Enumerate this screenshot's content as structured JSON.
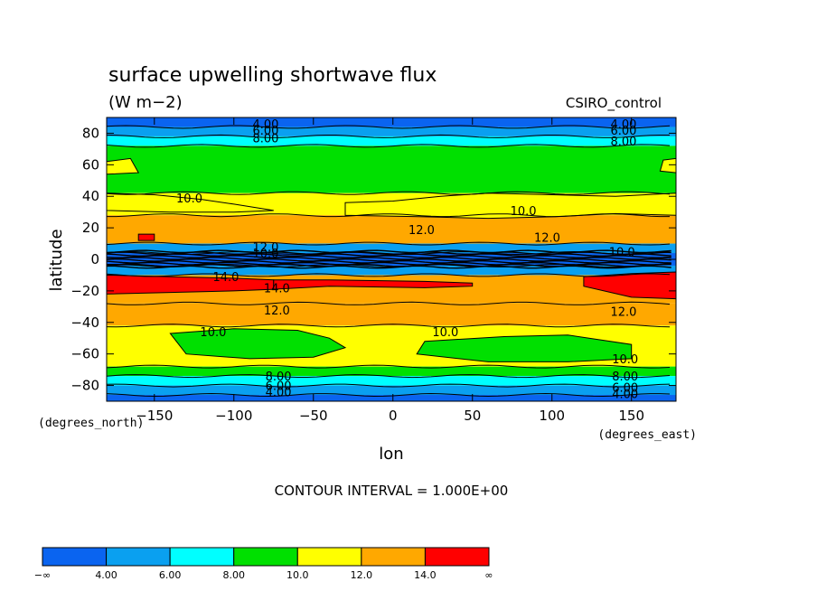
{
  "chart_data": {
    "type": "heatmap",
    "title": "surface upwelling shortwave flux",
    "units": "(W m−2)",
    "dataset": "CSIRO_control",
    "xlabel": "lon",
    "ylabel": "latitude",
    "x_unit_note": "(degrees_east)",
    "y_unit_note": "(degrees_north)",
    "xlim": [
      -180,
      178
    ],
    "ylim": [
      -90,
      90
    ],
    "x_ticks": [
      -150,
      -100,
      -50,
      0,
      50,
      100,
      150
    ],
    "y_ticks": [
      80,
      60,
      40,
      20,
      0,
      -20,
      -40,
      -60,
      -80
    ],
    "x_tick_labels": [
      "−150",
      "−100",
      "−50",
      "0",
      "50",
      "100",
      "150"
    ],
    "y_tick_labels": [
      "80",
      "60",
      "40",
      "20",
      "0",
      "−20",
      "−40",
      "−60",
      "−80"
    ],
    "contour_interval_text": "CONTOUR INTERVAL = 1.000E+00",
    "colorbar": {
      "levels": [
        "−∞",
        "4.00",
        "6.00",
        "8.00",
        "10.0",
        "12.0",
        "14.0",
        "∞"
      ],
      "colors": [
        "#0a64f0",
        "#0aa0f0",
        "#00ffff",
        "#00e000",
        "#ffff00",
        "#ffa800",
        "#ff0000"
      ]
    },
    "zonal_bands": [
      {
        "lat_from": 90,
        "lat_to": 84,
        "value": 3.5
      },
      {
        "lat_from": 84,
        "lat_to": 78,
        "value": 5.0
      },
      {
        "lat_from": 78,
        "lat_to": 72,
        "value": 7.0
      },
      {
        "lat_from": 72,
        "lat_to": 42,
        "value": 9.0
      },
      {
        "lat_from": 42,
        "lat_to": 28,
        "value": 11.0
      },
      {
        "lat_from": 28,
        "lat_to": 10,
        "value": 13.0
      },
      {
        "lat_from": 10,
        "lat_to": 4,
        "value": 5.0
      },
      {
        "lat_from": 4,
        "lat_to": -4,
        "value": 3.5
      },
      {
        "lat_from": -4,
        "lat_to": -10,
        "value": 5.0
      },
      {
        "lat_from": -10,
        "lat_to": -28,
        "value": 13.0
      },
      {
        "lat_from": -28,
        "lat_to": -42,
        "value": 13.0
      },
      {
        "lat_from": -42,
        "lat_to": -68,
        "value": 11.0
      },
      {
        "lat_from": -68,
        "lat_to": -74,
        "value": 9.0
      },
      {
        "lat_from": -74,
        "lat_to": -80,
        "value": 7.0
      },
      {
        "lat_from": -80,
        "lat_to": -86,
        "value": 5.0
      },
      {
        "lat_from": -86,
        "lat_to": -90,
        "value": 3.5
      }
    ],
    "regions": [
      {
        "value": 15.0,
        "lon": [
          -180,
          -140,
          -100,
          -75,
          -75,
          -100,
          -140,
          -180
        ],
        "lat": [
          -10,
          -11,
          -12,
          -13,
          -19,
          -20,
          -21,
          -22
        ]
      },
      {
        "value": 15.0,
        "lon": [
          -75,
          -40,
          20,
          50,
          50,
          20,
          -40,
          -75
        ],
        "lat": [
          -13,
          -13,
          -14,
          -15,
          -17,
          -18,
          -17,
          -19
        ]
      },
      {
        "value": 15.0,
        "lon": [
          120,
          150,
          178,
          178,
          150,
          120
        ],
        "lat": [
          -11,
          -9,
          -8,
          -25,
          -24,
          -17
        ]
      },
      {
        "value": 15.0,
        "lon": [
          -160,
          -150,
          -150,
          -160
        ],
        "lat": [
          16,
          16,
          12,
          12
        ]
      },
      {
        "value": 9.0,
        "lon": [
          -140,
          -100,
          -60,
          -40,
          -30,
          -50,
          -90,
          -130
        ],
        "lat": [
          -47,
          -44,
          -45,
          -50,
          -56,
          -62,
          -63,
          -60
        ]
      },
      {
        "value": 9.0,
        "lon": [
          20,
          70,
          110,
          150,
          150,
          110,
          60,
          15
        ],
        "lat": [
          -52,
          -49,
          -48,
          -54,
          -63,
          -65,
          -65,
          -60
        ]
      },
      {
        "value": 11.0,
        "lon": [
          -180,
          -150,
          -120,
          -100,
          -75,
          -100,
          -140,
          -180
        ],
        "lat": [
          42,
          41,
          38,
          35,
          31,
          30,
          30,
          31
        ]
      },
      {
        "value": 11.0,
        "lon": [
          -30,
          0,
          30,
          60,
          100,
          140,
          178,
          178,
          140,
          100,
          60,
          20,
          -30
        ],
        "lat": [
          36,
          37,
          40,
          42,
          41,
          40,
          42,
          28,
          29,
          27,
          26,
          27,
          28
        ]
      },
      {
        "value": 11.0,
        "lon": [
          -180,
          -165,
          -160,
          -180
        ],
        "lat": [
          62,
          64,
          55,
          54
        ]
      },
      {
        "value": 11.0,
        "lon": [
          170,
          178,
          178,
          168
        ],
        "lat": [
          63,
          64,
          55,
          56
        ]
      }
    ],
    "contour_labels": [
      {
        "text": "4.00",
        "lon": -80,
        "lat": 86
      },
      {
        "text": "6.00",
        "lon": -80,
        "lat": 82
      },
      {
        "text": "8.00",
        "lon": -80,
        "lat": 77
      },
      {
        "text": "4.00",
        "lon": 145,
        "lat": 86
      },
      {
        "text": "6.00",
        "lon": 145,
        "lat": 82
      },
      {
        "text": "8.00",
        "lon": 145,
        "lat": 75
      },
      {
        "text": "10.0",
        "lon": -128,
        "lat": 39
      },
      {
        "text": "10.0",
        "lon": 82,
        "lat": 31
      },
      {
        "text": "12.0",
        "lon": 18,
        "lat": 19
      },
      {
        "text": "12.0",
        "lon": 97,
        "lat": 14
      },
      {
        "text": "12.0",
        "lon": -80,
        "lat": 8
      },
      {
        "text": "10.0",
        "lon": -80,
        "lat": 4
      },
      {
        "text": "10.0",
        "lon": 144,
        "lat": 5
      },
      {
        "text": "14.0",
        "lon": -105,
        "lat": -11
      },
      {
        "text": "14.0",
        "lon": -73,
        "lat": -18
      },
      {
        "text": "12.0",
        "lon": -73,
        "lat": -32
      },
      {
        "text": "12.0",
        "lon": 145,
        "lat": -33
      },
      {
        "text": "10.0",
        "lon": -113,
        "lat": -46
      },
      {
        "text": "10.0",
        "lon": 33,
        "lat": -46
      },
      {
        "text": "10.0",
        "lon": 146,
        "lat": -63
      },
      {
        "text": "8.00",
        "lon": -72,
        "lat": -74
      },
      {
        "text": "8.00",
        "lon": 146,
        "lat": -74
      },
      {
        "text": "6.00",
        "lon": -72,
        "lat": -80
      },
      {
        "text": "6.00",
        "lon": 146,
        "lat": -81
      },
      {
        "text": "4.00",
        "lon": -72,
        "lat": -84
      },
      {
        "text": "4.00",
        "lon": 146,
        "lat": -85
      }
    ],
    "grid": false,
    "legend": "bottom-left colorbar"
  }
}
